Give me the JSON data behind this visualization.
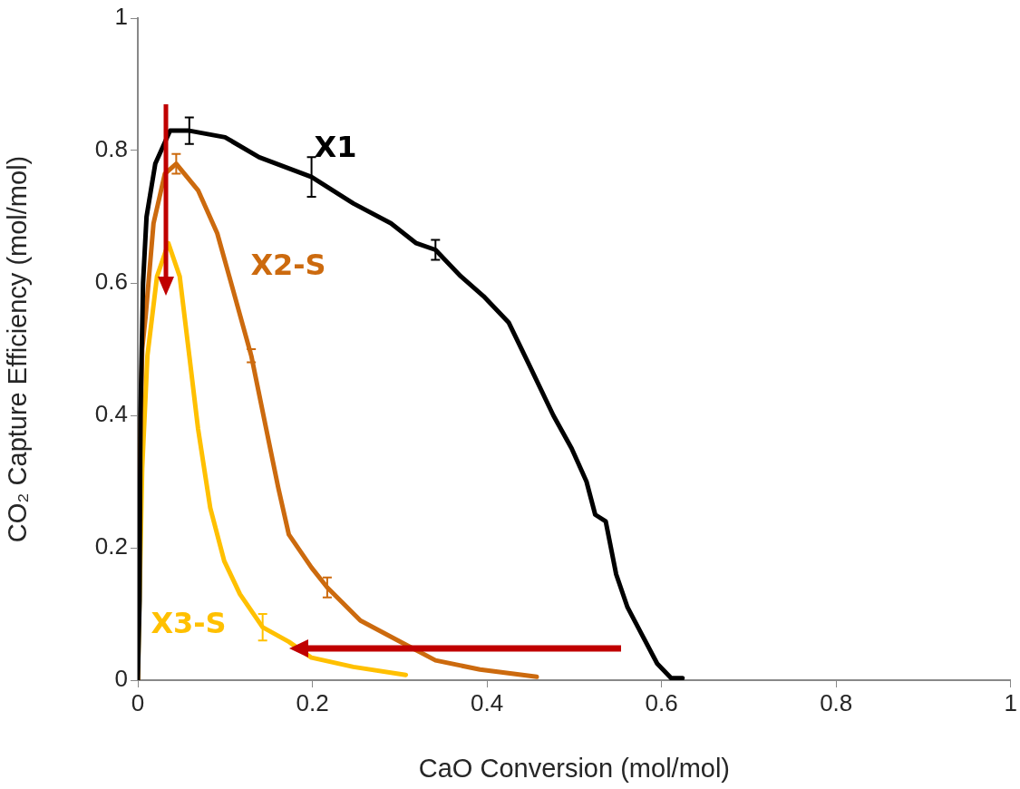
{
  "chart_data": {
    "type": "line",
    "xlabel": "CaO Conversion (mol/mol)",
    "ylabel": "CO₂ Capture Efficiency (mol/mol)",
    "xlim": [
      0,
      1
    ],
    "xticks": [
      0,
      0.2,
      0.4,
      0.6,
      0.8,
      1
    ],
    "ylim": [
      0,
      1
    ],
    "yticks": [
      0,
      0.2,
      0.4,
      0.6,
      0.8,
      1
    ],
    "legend": false,
    "marker": "none",
    "line_style": "solid",
    "series": [
      {
        "name": "X1",
        "color": "#000000",
        "x": [
          0,
          0.002,
          0.003,
          0.006,
          0.01,
          0.02,
          0.037,
          0.059,
          0.1,
          0.139,
          0.199,
          0.247,
          0.29,
          0.319,
          0.341,
          0.37,
          0.396,
          0.425,
          0.447,
          0.476,
          0.497,
          0.514,
          0.524,
          0.536,
          0.548,
          0.561,
          0.577,
          0.595,
          0.611,
          0.624
        ],
        "values": [
          0,
          0.12,
          0.4,
          0.6,
          0.7,
          0.78,
          0.83,
          0.83,
          0.82,
          0.79,
          0.76,
          0.72,
          0.69,
          0.66,
          0.65,
          0.61,
          0.58,
          0.54,
          0.48,
          0.4,
          0.35,
          0.3,
          0.25,
          0.24,
          0.16,
          0.11,
          0.07,
          0.025,
          0.003,
          0.003
        ],
        "errors": [
          null,
          null,
          null,
          null,
          null,
          null,
          null,
          0.02,
          null,
          null,
          0.03,
          null,
          null,
          null,
          0.015,
          null,
          null,
          null,
          null,
          null,
          null,
          null,
          null,
          null,
          null,
          null,
          null,
          null,
          null,
          null
        ]
      },
      {
        "name": "X2-S",
        "color": "#cc6a0e",
        "x": [
          0,
          0.002,
          0.005,
          0.009,
          0.018,
          0.031,
          0.044,
          0.069,
          0.091,
          0.109,
          0.13,
          0.147,
          0.161,
          0.173,
          0.199,
          0.217,
          0.255,
          0.298,
          0.341,
          0.392,
          0.457
        ],
        "values": [
          0,
          0.3,
          0.5,
          0.55,
          0.69,
          0.765,
          0.78,
          0.74,
          0.675,
          0.59,
          0.49,
          0.38,
          0.29,
          0.22,
          0.17,
          0.14,
          0.09,
          0.06,
          0.03,
          0.016,
          0.005
        ],
        "errors": [
          null,
          null,
          null,
          null,
          null,
          null,
          0.015,
          null,
          null,
          null,
          0.01,
          null,
          null,
          null,
          null,
          0.015,
          null,
          null,
          null,
          null,
          null
        ]
      },
      {
        "name": "X3-S",
        "color": "#ffc000",
        "x": [
          0,
          0.005,
          0.011,
          0.022,
          0.035,
          0.048,
          0.059,
          0.069,
          0.083,
          0.099,
          0.117,
          0.143,
          0.173,
          0.199,
          0.247,
          0.307
        ],
        "values": [
          0,
          0.32,
          0.49,
          0.61,
          0.66,
          0.61,
          0.49,
          0.38,
          0.26,
          0.18,
          0.13,
          0.08,
          0.058,
          0.034,
          0.02,
          0.008
        ],
        "errors": [
          null,
          null,
          null,
          null,
          null,
          null,
          null,
          null,
          null,
          null,
          null,
          0.02,
          null,
          null,
          null,
          null
        ]
      }
    ]
  }
}
